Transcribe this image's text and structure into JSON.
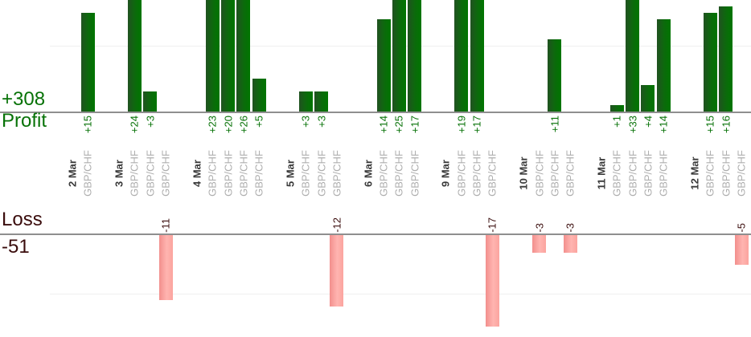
{
  "chart_data": {
    "type": "bar",
    "title": "",
    "totals": {
      "profit": "+308",
      "loss": "-51"
    },
    "axis_labels": {
      "profit": "Profit",
      "loss": "Loss"
    },
    "layout": {
      "profit_axis_range_visible": [
        0,
        17
      ],
      "loss_axis_range_visible": [
        0,
        -15.5
      ],
      "gridlines": [
        10,
        -10
      ],
      "grid": "faint single line each section",
      "legend": "none",
      "bars_rotated_labels": true
    },
    "groups": [
      {
        "date": "2 Mar",
        "trades": [
          {
            "symbol": "GBP/CHF",
            "label": "+15",
            "value": 15
          }
        ]
      },
      {
        "date": "3 Mar",
        "trades": [
          {
            "symbol": "GBP/CHF",
            "label": "+24",
            "value": 24
          },
          {
            "symbol": "GBP/CHF",
            "label": "+3",
            "value": 3
          },
          {
            "symbol": "GBP/CHF",
            "label": "-11",
            "value": -11
          }
        ]
      },
      {
        "date": "4 Mar",
        "trades": [
          {
            "symbol": "GBP/CHF",
            "label": "+23",
            "value": 23
          },
          {
            "symbol": "GBP/CHF",
            "label": "+20",
            "value": 20
          },
          {
            "symbol": "GBP/CHF",
            "label": "+26",
            "value": 26
          },
          {
            "symbol": "GBP/CHF",
            "label": "+5",
            "value": 5
          }
        ]
      },
      {
        "date": "5 Mar",
        "trades": [
          {
            "symbol": "GBP/CHF",
            "label": "+3",
            "value": 3
          },
          {
            "symbol": "GBP/CHF",
            "label": "+3",
            "value": 3
          },
          {
            "symbol": "GBP/CHF",
            "label": "-12",
            "value": -12
          }
        ]
      },
      {
        "date": "6 Mar",
        "trades": [
          {
            "symbol": "GBP/CHF",
            "label": "+14",
            "value": 14
          },
          {
            "symbol": "GBP/CHF",
            "label": "+25",
            "value": 25
          },
          {
            "symbol": "GBP/CHF",
            "label": "+17",
            "value": 17
          }
        ]
      },
      {
        "date": "9 Mar",
        "trades": [
          {
            "symbol": "GBP/CHF",
            "label": "+19",
            "value": 19
          },
          {
            "symbol": "GBP/CHF",
            "label": "+17",
            "value": 17
          },
          {
            "symbol": "GBP/CHF",
            "label": "-17",
            "value": -17
          }
        ]
      },
      {
        "date": "10 Mar",
        "trades": [
          {
            "symbol": "GBP/CHF",
            "label": "-3",
            "value": -3
          },
          {
            "symbol": "GBP/CHF",
            "label": "+11",
            "value": 11
          },
          {
            "symbol": "GBP/CHF",
            "label": "-3",
            "value": -3
          }
        ]
      },
      {
        "date": "11 Mar",
        "trades": [
          {
            "symbol": "GBP/CHF",
            "label": "+1",
            "value": 1
          },
          {
            "symbol": "GBP/CHF",
            "label": "+33",
            "value": 33
          },
          {
            "symbol": "GBP/CHF",
            "label": "+4",
            "value": 4
          },
          {
            "symbol": "GBP/CHF",
            "label": "+14",
            "value": 14
          }
        ]
      },
      {
        "date": "12 Mar",
        "trades": [
          {
            "symbol": "GBP/CHF",
            "label": "+15",
            "value": 15
          },
          {
            "symbol": "GBP/CHF",
            "label": "+16",
            "value": 16
          },
          {
            "symbol": "GBP/CHF",
            "label": "-5",
            "value": -5
          }
        ]
      }
    ],
    "colors": {
      "green-text": "#077207",
      "maroon-text": "#3a0c0c",
      "date-color": "#3a3a3a",
      "symbol-color": "#aeaeae",
      "axis-color": "#8f8f8f",
      "grid-color": "#efefef",
      "bar-green-1": "#215221",
      "bar-green-2": "#0b6b0b",
      "bar-green-3": "#007500",
      "bar-pink-1": "#f28f8d",
      "bar-pink-2": "#ffb4b0",
      "bar-pink-3": "#fba49f"
    }
  }
}
